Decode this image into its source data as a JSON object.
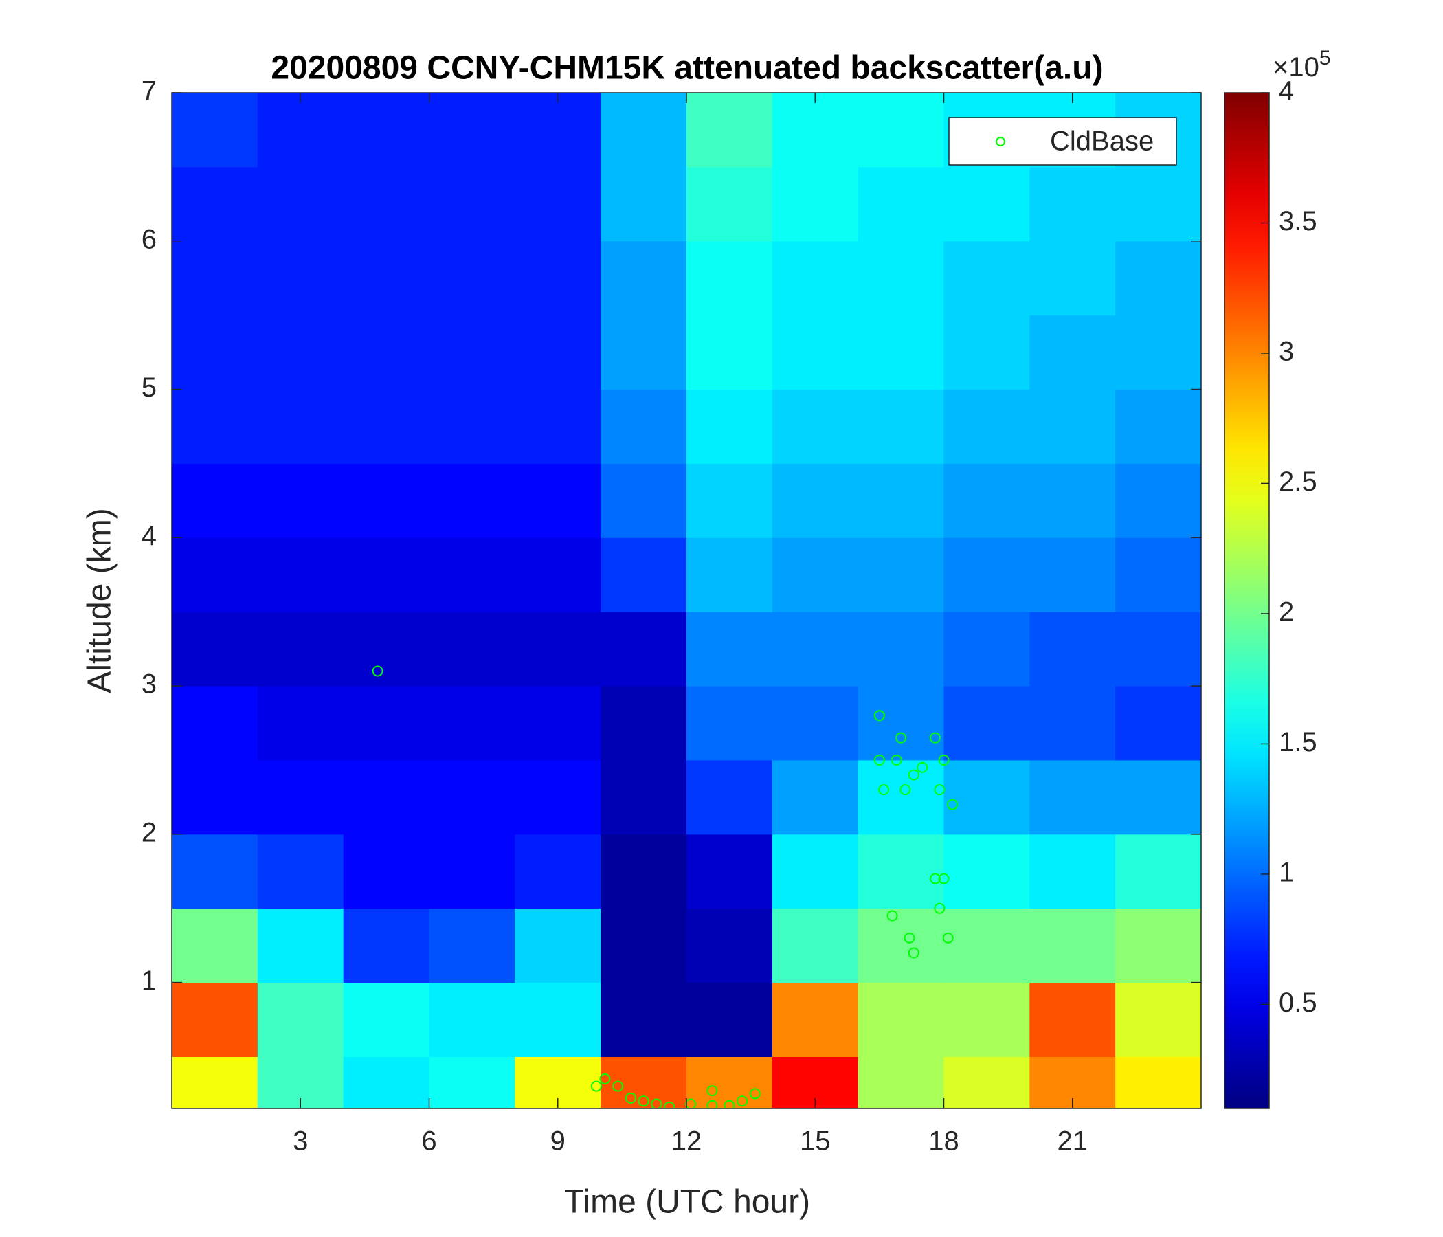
{
  "chart_data": {
    "type": "heatmap",
    "title": "20200809 CCNY-CHM15K attenuated backscatter(a.u)",
    "x_label": "Time (UTC hour)",
    "y_label": "Altitude (km)",
    "xlim": [
      0,
      24
    ],
    "ylim": [
      0.15,
      7
    ],
    "xticks": [
      3,
      6,
      9,
      12,
      15,
      18,
      21
    ],
    "yticks": [
      1,
      2,
      3,
      4,
      5,
      6,
      7
    ],
    "colormap": "jet",
    "clim": [
      0.1,
      4
    ],
    "colorbar_ticks": [
      0.5,
      1,
      1.5,
      2,
      2.5,
      3,
      3.5,
      4
    ],
    "colorbar_multiplier": {
      "base": "×10",
      "exponent": "5"
    },
    "heatmap": {
      "x": [
        0,
        2,
        4,
        6,
        8,
        10,
        12,
        14,
        16,
        18,
        20,
        22,
        24
      ],
      "y": [
        0.15,
        0.5,
        1,
        1.5,
        2,
        2.5,
        3,
        3.5,
        4,
        4.5,
        5,
        5.5,
        6,
        6.5,
        7
      ],
      "z": [
        [
          2.5,
          1.8,
          1.5,
          1.6,
          2.5,
          3.2,
          3.0,
          3.5,
          2.2,
          2.4,
          3.0,
          2.6
        ],
        [
          3.2,
          1.8,
          1.6,
          1.5,
          1.5,
          0.2,
          0.2,
          3.0,
          2.2,
          2.2,
          3.2,
          2.4
        ],
        [
          2.0,
          1.5,
          0.8,
          0.9,
          1.4,
          0.2,
          0.3,
          1.8,
          2.0,
          2.0,
          2.0,
          2.1
        ],
        [
          0.9,
          0.8,
          0.6,
          0.6,
          0.7,
          0.2,
          0.4,
          1.5,
          1.7,
          1.6,
          1.5,
          1.7
        ],
        [
          0.6,
          0.6,
          0.6,
          0.6,
          0.6,
          0.3,
          0.8,
          1.2,
          1.5,
          1.3,
          1.2,
          1.2
        ],
        [
          0.6,
          0.5,
          0.5,
          0.5,
          0.5,
          0.3,
          1.0,
          1.0,
          1.1,
          0.9,
          0.9,
          0.8
        ],
        [
          0.4,
          0.4,
          0.4,
          0.4,
          0.4,
          0.4,
          1.1,
          1.1,
          1.1,
          1.0,
          0.9,
          0.9
        ],
        [
          0.5,
          0.5,
          0.5,
          0.5,
          0.5,
          0.8,
          1.3,
          1.2,
          1.2,
          1.1,
          1.1,
          1.0
        ],
        [
          0.6,
          0.6,
          0.6,
          0.6,
          0.6,
          1.0,
          1.4,
          1.3,
          1.3,
          1.2,
          1.2,
          1.1
        ],
        [
          0.7,
          0.7,
          0.7,
          0.7,
          0.7,
          1.1,
          1.5,
          1.4,
          1.4,
          1.3,
          1.3,
          1.2
        ],
        [
          0.7,
          0.7,
          0.7,
          0.7,
          0.7,
          1.2,
          1.6,
          1.5,
          1.5,
          1.4,
          1.3,
          1.3
        ],
        [
          0.7,
          0.7,
          0.7,
          0.7,
          0.7,
          1.2,
          1.6,
          1.5,
          1.5,
          1.4,
          1.4,
          1.3
        ],
        [
          0.7,
          0.7,
          0.7,
          0.7,
          0.7,
          1.3,
          1.7,
          1.6,
          1.5,
          1.5,
          1.4,
          1.4
        ],
        [
          0.8,
          0.7,
          0.7,
          0.7,
          0.7,
          1.3,
          1.8,
          1.6,
          1.6,
          1.5,
          1.5,
          1.4
        ]
      ]
    },
    "series": [
      {
        "name": "CldBase",
        "color": "#00ff00",
        "x": [
          4.8,
          9.9,
          10.1,
          10.4,
          10.7,
          11.0,
          11.3,
          11.6,
          12.1,
          12.6,
          12.6,
          13.0,
          13.3,
          13.6,
          16.5,
          16.5,
          16.6,
          16.8,
          16.9,
          17.0,
          17.1,
          17.2,
          17.3,
          17.3,
          17.5,
          17.8,
          17.8,
          17.9,
          17.9,
          18.0,
          18.0,
          18.1,
          18.2
        ],
        "y": [
          3.1,
          0.3,
          0.35,
          0.3,
          0.22,
          0.2,
          0.18,
          0.16,
          0.18,
          0.27,
          0.17,
          0.17,
          0.2,
          0.25,
          2.8,
          2.5,
          2.3,
          1.45,
          2.5,
          2.65,
          2.3,
          1.3,
          1.2,
          2.4,
          2.45,
          2.65,
          1.7,
          2.3,
          1.5,
          2.5,
          1.7,
          1.3,
          2.2
        ]
      }
    ],
    "legend": "upper right"
  }
}
